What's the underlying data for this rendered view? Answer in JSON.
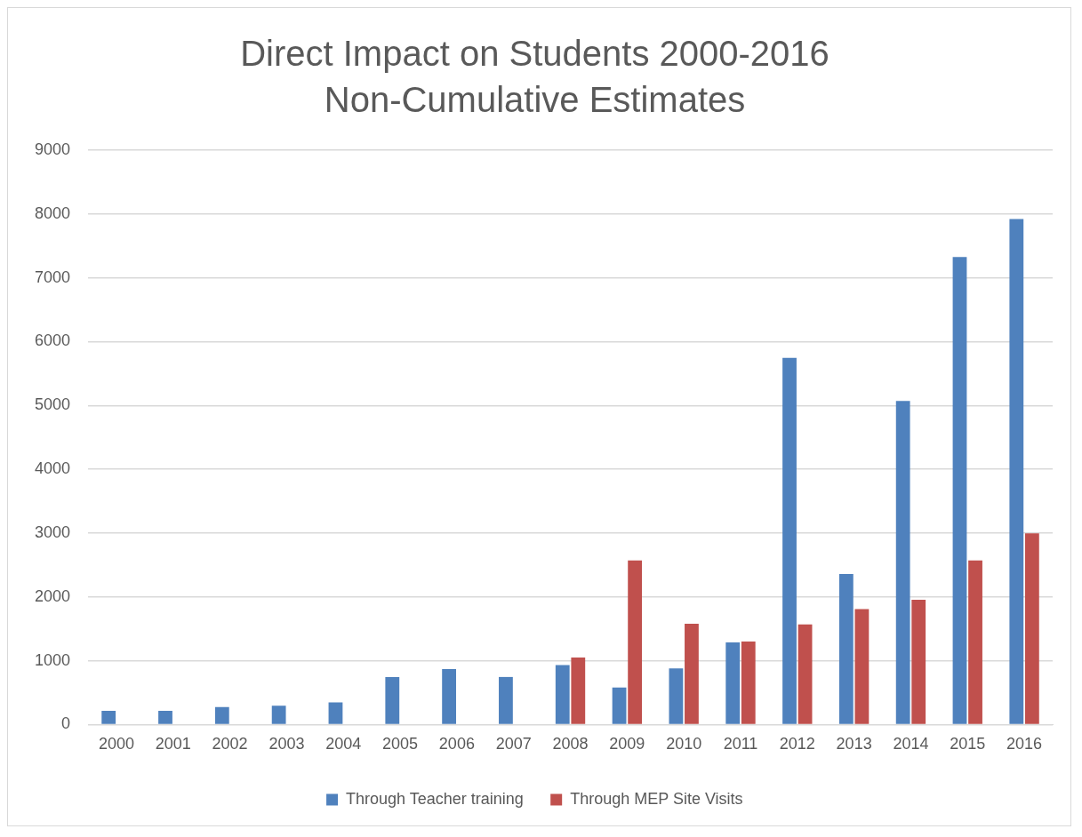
{
  "chart_data": {
    "type": "bar",
    "title": "Direct Impact on Students 2000-2016",
    "subtitle": "Non-Cumulative Estimates",
    "categories": [
      "2000",
      "2001",
      "2002",
      "2003",
      "2004",
      "2005",
      "2006",
      "2007",
      "2008",
      "2009",
      "2010",
      "2011",
      "2012",
      "2013",
      "2014",
      "2015",
      "2016"
    ],
    "series": [
      {
        "name": "Through Teacher training",
        "color": "#4f81bd",
        "values": [
          215,
          215,
          275,
          295,
          345,
          745,
          870,
          745,
          930,
          580,
          880,
          1285,
          5745,
          2360,
          5070,
          7325,
          7920
        ]
      },
      {
        "name": "Through MEP Site Visits",
        "color": "#c0504d",
        "values": [
          null,
          null,
          null,
          null,
          null,
          null,
          null,
          null,
          1050,
          2570,
          1580,
          1300,
          1570,
          1810,
          1955,
          2570,
          2995
        ]
      }
    ],
    "ylim": [
      0,
      9000
    ],
    "yticks": [
      0,
      1000,
      2000,
      3000,
      4000,
      5000,
      6000,
      7000,
      8000,
      9000
    ],
    "grid": "y",
    "legend": "bottom"
  }
}
